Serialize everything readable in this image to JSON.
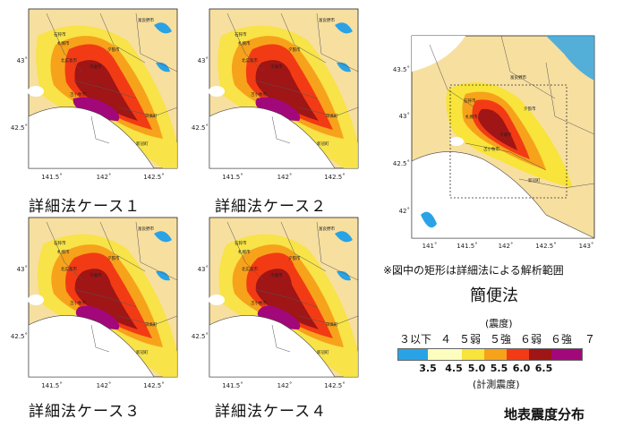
{
  "cases": [
    {
      "caption": "詳細法ケース１"
    },
    {
      "caption": "詳細法ケース２"
    },
    {
      "caption": "詳細法ケース３"
    },
    {
      "caption": "詳細法ケース４"
    }
  ],
  "detail_axes": {
    "x_ticks": [
      "141.5˚",
      "142˚",
      "142.5˚"
    ],
    "y_ticks": [
      "43˚",
      "42.5˚"
    ]
  },
  "simple_axes": {
    "x_ticks": [
      "141˚",
      "141.5˚",
      "142˚",
      "142.5˚",
      "143˚"
    ],
    "y_ticks": [
      "43.5˚",
      "43˚",
      "42.5˚",
      "42˚"
    ]
  },
  "detail_places": [
    "富良野市",
    "石狩市",
    "夕張市",
    "札幌市",
    "北広島市",
    "千歳市",
    "苫小牧市",
    "日高町",
    "新冠町"
  ],
  "simple_places": [
    "富良野市",
    "石狩市",
    "夕張市",
    "札幌市",
    "千歳市",
    "苫小牧市",
    "新冠町"
  ],
  "note": "※図中の矩形は詳細法による解析範囲",
  "simple_title": "簡便法",
  "legend": {
    "title": "(震度)",
    "classes": [
      "３以下",
      "４",
      "５弱",
      "５強",
      "６弱",
      "６強",
      "７"
    ],
    "colors": [
      "#29a3e6",
      "#fefdc0",
      "#f8e43a",
      "#f7a21b",
      "#f23b14",
      "#a01515",
      "#a2087a"
    ],
    "values": [
      "3.5",
      "4.5",
      "5.0",
      "5.5",
      "6.0",
      "6.5"
    ],
    "subtitle": "(計測震度)"
  },
  "footer": "地表震度分布"
}
